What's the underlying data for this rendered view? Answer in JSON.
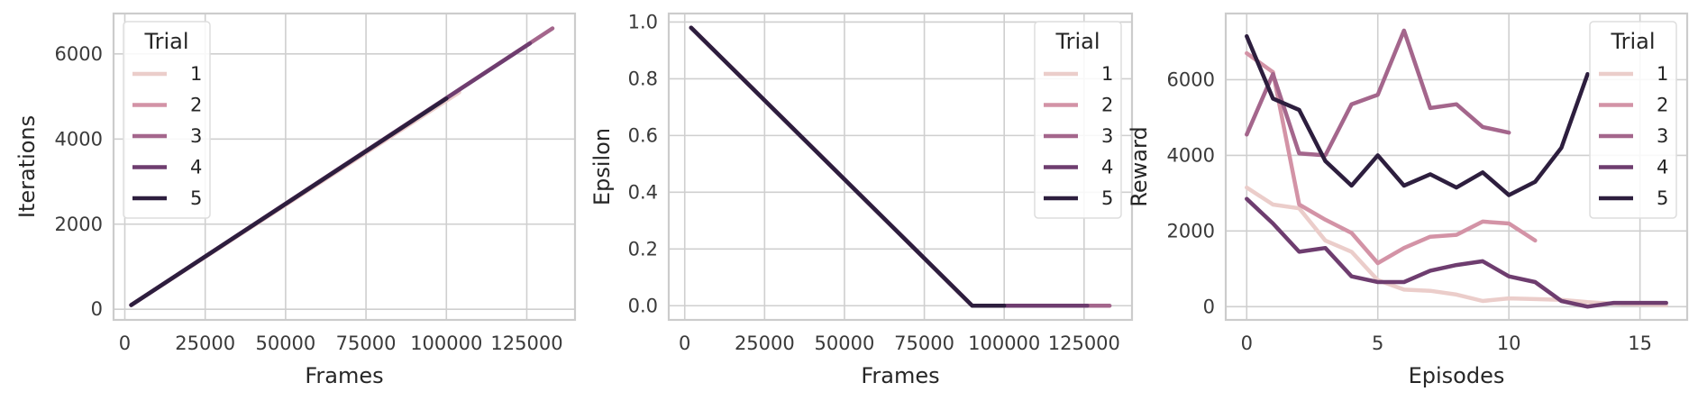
{
  "legend_title": "Trial",
  "trials": [
    {
      "name": "1",
      "color": "#ebcdca"
    },
    {
      "name": "2",
      "color": "#d393a6"
    },
    {
      "name": "3",
      "color": "#a4668c"
    },
    {
      "name": "4",
      "color": "#6e3d6f"
    },
    {
      "name": "5",
      "color": "#2d1e3e"
    }
  ],
  "chart_data": [
    {
      "type": "line",
      "xlabel": "Frames",
      "ylabel": "Iterations",
      "xlim": [
        -3500,
        140000
      ],
      "ylim": [
        -250,
        6950
      ],
      "xticks": [
        0,
        25000,
        50000,
        75000,
        100000,
        125000
      ],
      "yticks": [
        0,
        2000,
        4000,
        6000
      ],
      "legend_position": "upper-left",
      "series": [
        {
          "name": "1",
          "x": [
            2000,
            104000
          ],
          "y": [
            100,
            5100
          ]
        },
        {
          "name": "2",
          "x": [
            2000,
            90000
          ],
          "y": [
            100,
            4450
          ]
        },
        {
          "name": "3",
          "x": [
            2000,
            133000
          ],
          "y": [
            100,
            6600
          ]
        },
        {
          "name": "4",
          "x": [
            2000,
            126000
          ],
          "y": [
            100,
            6250
          ]
        },
        {
          "name": "5",
          "x": [
            2000,
            100000
          ],
          "y": [
            100,
            4950
          ]
        }
      ]
    },
    {
      "type": "line",
      "xlabel": "Frames",
      "ylabel": "Epsilon",
      "xlim": [
        -5000,
        140000
      ],
      "ylim": [
        -0.05,
        1.03
      ],
      "xticks": [
        0,
        25000,
        50000,
        75000,
        100000,
        125000
      ],
      "yticks": [
        0.0,
        0.2,
        0.4,
        0.6,
        0.8,
        1.0
      ],
      "legend_position": "upper-right",
      "series": [
        {
          "name": "1",
          "x": [
            2000,
            90000,
            104000
          ],
          "y": [
            0.98,
            0.0,
            0.0
          ]
        },
        {
          "name": "2",
          "x": [
            2000,
            90000
          ],
          "y": [
            0.98,
            0.0
          ]
        },
        {
          "name": "3",
          "x": [
            2000,
            90000,
            133000
          ],
          "y": [
            0.98,
            0.0,
            0.0
          ]
        },
        {
          "name": "4",
          "x": [
            2000,
            90000,
            126000
          ],
          "y": [
            0.98,
            0.0,
            0.0
          ]
        },
        {
          "name": "5",
          "x": [
            2000,
            90000,
            100000
          ],
          "y": [
            0.98,
            0.0,
            0.0
          ]
        }
      ]
    },
    {
      "type": "line",
      "xlabel": "Episodes",
      "ylabel": "Reward",
      "xlim": [
        -0.8,
        16.8
      ],
      "ylim": [
        -350,
        7750
      ],
      "xticks": [
        0,
        5,
        10,
        15
      ],
      "yticks": [
        0,
        2000,
        4000,
        6000
      ],
      "legend_position": "upper-right",
      "series": [
        {
          "name": "1",
          "x": [
            0,
            1,
            2,
            3,
            4,
            5,
            6,
            7,
            8,
            9,
            10,
            11,
            12,
            13,
            14,
            15,
            16
          ],
          "y": [
            3150,
            2700,
            2600,
            1750,
            1450,
            700,
            450,
            420,
            320,
            150,
            220,
            200,
            180,
            120,
            80,
            60,
            40
          ]
        },
        {
          "name": "2",
          "x": [
            0,
            1,
            2,
            3,
            4,
            5,
            6,
            7,
            8,
            9,
            10,
            11
          ],
          "y": [
            6700,
            6200,
            2700,
            2300,
            1950,
            1150,
            1550,
            1850,
            1900,
            2250,
            2200,
            1750
          ]
        },
        {
          "name": "3",
          "x": [
            0,
            1,
            2,
            3,
            4,
            5,
            6,
            7,
            8,
            9,
            10
          ],
          "y": [
            4550,
            6150,
            4050,
            4000,
            5350,
            5600,
            7300,
            5250,
            5350,
            4750,
            4600
          ]
        },
        {
          "name": "4",
          "x": [
            0,
            1,
            2,
            3,
            4,
            5,
            6,
            7,
            8,
            9,
            10,
            11,
            12,
            13,
            14,
            15,
            16
          ],
          "y": [
            2850,
            2200,
            1450,
            1550,
            800,
            650,
            650,
            950,
            1100,
            1200,
            800,
            650,
            150,
            0,
            100,
            100,
            100
          ]
        },
        {
          "name": "5",
          "x": [
            0,
            1,
            2,
            3,
            4,
            5,
            6,
            7,
            8,
            9,
            10,
            11,
            12,
            13
          ],
          "y": [
            7150,
            5500,
            5200,
            3850,
            3200,
            4000,
            3200,
            3500,
            3150,
            3550,
            2950,
            3300,
            4200,
            6150
          ]
        }
      ]
    }
  ]
}
